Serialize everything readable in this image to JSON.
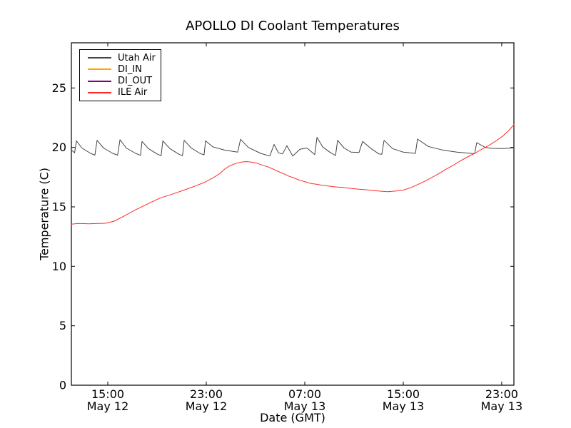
{
  "chart_data": {
    "type": "line",
    "title": "APOLLO DI Coolant Temperatures",
    "xlabel": "Date (GMT)",
    "ylabel": "Temperature (C)",
    "x_unit": "hours since May 12 00:00 (GMT)",
    "xlim": [
      12.04,
      47.99
    ],
    "ylim": [
      0,
      28.8
    ],
    "grid": false,
    "legend_position": "upper-left",
    "x_ticks": [
      {
        "value": 15,
        "time": "15:00",
        "date": "May 12"
      },
      {
        "value": 23,
        "time": "23:00",
        "date": "May 12"
      },
      {
        "value": 31,
        "time": "07:00",
        "date": "May 13"
      },
      {
        "value": 39,
        "time": "15:00",
        "date": "May 13"
      },
      {
        "value": 47,
        "time": "23:00",
        "date": "May 13"
      }
    ],
    "y_ticks": [
      {
        "value": 0,
        "label": "0"
      },
      {
        "value": 5,
        "label": "5"
      },
      {
        "value": 10,
        "label": "10"
      },
      {
        "value": 15,
        "label": "15"
      },
      {
        "value": 20,
        "label": "20"
      },
      {
        "value": 25,
        "label": "25"
      }
    ],
    "series": [
      {
        "name": "Utah Air",
        "color": "#444444",
        "points": [
          [
            12.04,
            19.78
          ],
          [
            12.3,
            19.55
          ],
          [
            12.45,
            20.55
          ],
          [
            12.9,
            19.95
          ],
          [
            13.6,
            19.5
          ],
          [
            13.95,
            19.35
          ],
          [
            14.13,
            20.6
          ],
          [
            14.65,
            19.95
          ],
          [
            15.4,
            19.5
          ],
          [
            15.8,
            19.35
          ],
          [
            15.99,
            20.65
          ],
          [
            16.5,
            19.95
          ],
          [
            17.25,
            19.5
          ],
          [
            17.65,
            19.33
          ],
          [
            17.78,
            20.5
          ],
          [
            18.3,
            19.9
          ],
          [
            19.0,
            19.45
          ],
          [
            19.33,
            19.3
          ],
          [
            19.47,
            20.55
          ],
          [
            20.04,
            19.9
          ],
          [
            20.74,
            19.45
          ],
          [
            21.07,
            19.3
          ],
          [
            21.2,
            20.6
          ],
          [
            21.78,
            19.95
          ],
          [
            22.48,
            19.5
          ],
          [
            22.82,
            19.37
          ],
          [
            22.94,
            20.55
          ],
          [
            23.52,
            20.05
          ],
          [
            24.51,
            19.77
          ],
          [
            25.55,
            19.6
          ],
          [
            25.78,
            20.68
          ],
          [
            26.42,
            20.0
          ],
          [
            27.41,
            19.5
          ],
          [
            28.16,
            19.28
          ],
          [
            28.51,
            20.25
          ],
          [
            28.86,
            19.55
          ],
          [
            29.2,
            19.45
          ],
          [
            29.55,
            20.15
          ],
          [
            30.02,
            19.28
          ],
          [
            30.6,
            19.85
          ],
          [
            31.18,
            19.95
          ],
          [
            31.81,
            19.4
          ],
          [
            31.99,
            20.85
          ],
          [
            32.45,
            20.05
          ],
          [
            33.03,
            19.6
          ],
          [
            33.5,
            19.32
          ],
          [
            33.67,
            20.6
          ],
          [
            34.19,
            19.95
          ],
          [
            34.77,
            19.6
          ],
          [
            35.41,
            19.58
          ],
          [
            35.7,
            20.5
          ],
          [
            36.39,
            19.9
          ],
          [
            37.03,
            19.45
          ],
          [
            37.26,
            19.42
          ],
          [
            37.44,
            20.6
          ],
          [
            38.13,
            19.9
          ],
          [
            39.0,
            19.6
          ],
          [
            39.99,
            19.5
          ],
          [
            40.16,
            20.7
          ],
          [
            41.03,
            20.08
          ],
          [
            42.19,
            19.78
          ],
          [
            43.35,
            19.6
          ],
          [
            44.8,
            19.47
          ],
          [
            44.97,
            20.4
          ],
          [
            45.67,
            20.0
          ],
          [
            46.25,
            19.92
          ],
          [
            47.12,
            19.9
          ],
          [
            47.99,
            19.97
          ]
        ]
      },
      {
        "name": "DI_IN",
        "color": "#ffa500",
        "points": []
      },
      {
        "name": "DI_OUT",
        "color": "#800080",
        "points": []
      },
      {
        "name": "ILE Air",
        "color": "#ff2a2a",
        "points": [
          [
            12.04,
            13.55
          ],
          [
            12.6,
            13.6
          ],
          [
            13.49,
            13.58
          ],
          [
            14.25,
            13.6
          ],
          [
            14.83,
            13.62
          ],
          [
            15.52,
            13.8
          ],
          [
            16.39,
            14.26
          ],
          [
            17.14,
            14.7
          ],
          [
            17.84,
            15.04
          ],
          [
            18.54,
            15.4
          ],
          [
            19.29,
            15.76
          ],
          [
            20.04,
            16.0
          ],
          [
            20.74,
            16.25
          ],
          [
            21.43,
            16.5
          ],
          [
            22.19,
            16.79
          ],
          [
            22.94,
            17.1
          ],
          [
            23.64,
            17.5
          ],
          [
            24.1,
            17.8
          ],
          [
            24.51,
            18.2
          ],
          [
            24.91,
            18.45
          ],
          [
            25.38,
            18.65
          ],
          [
            25.84,
            18.77
          ],
          [
            26.25,
            18.81
          ],
          [
            26.65,
            18.77
          ],
          [
            27.12,
            18.67
          ],
          [
            27.58,
            18.5
          ],
          [
            27.99,
            18.37
          ],
          [
            28.45,
            18.17
          ],
          [
            28.86,
            17.97
          ],
          [
            29.32,
            17.77
          ],
          [
            29.74,
            17.57
          ],
          [
            30.2,
            17.4
          ],
          [
            30.61,
            17.23
          ],
          [
            31.07,
            17.1
          ],
          [
            31.48,
            16.97
          ],
          [
            31.94,
            16.9
          ],
          [
            32.35,
            16.83
          ],
          [
            32.81,
            16.77
          ],
          [
            33.22,
            16.71
          ],
          [
            33.67,
            16.67
          ],
          [
            34.08,
            16.63
          ],
          [
            34.54,
            16.58
          ],
          [
            34.96,
            16.53
          ],
          [
            35.41,
            16.48
          ],
          [
            35.81,
            16.45
          ],
          [
            36.39,
            16.4
          ],
          [
            36.97,
            16.33
          ],
          [
            37.73,
            16.27
          ],
          [
            38.42,
            16.33
          ],
          [
            39.0,
            16.41
          ],
          [
            39.58,
            16.6
          ],
          [
            40.16,
            16.87
          ],
          [
            40.74,
            17.15
          ],
          [
            41.32,
            17.47
          ],
          [
            41.9,
            17.8
          ],
          [
            42.48,
            18.17
          ],
          [
            43.06,
            18.5
          ],
          [
            43.64,
            18.87
          ],
          [
            44.22,
            19.2
          ],
          [
            44.8,
            19.5
          ],
          [
            45.38,
            19.85
          ],
          [
            45.96,
            20.17
          ],
          [
            46.54,
            20.55
          ],
          [
            47.12,
            20.98
          ],
          [
            47.6,
            21.45
          ],
          [
            47.99,
            21.92
          ]
        ]
      }
    ]
  }
}
